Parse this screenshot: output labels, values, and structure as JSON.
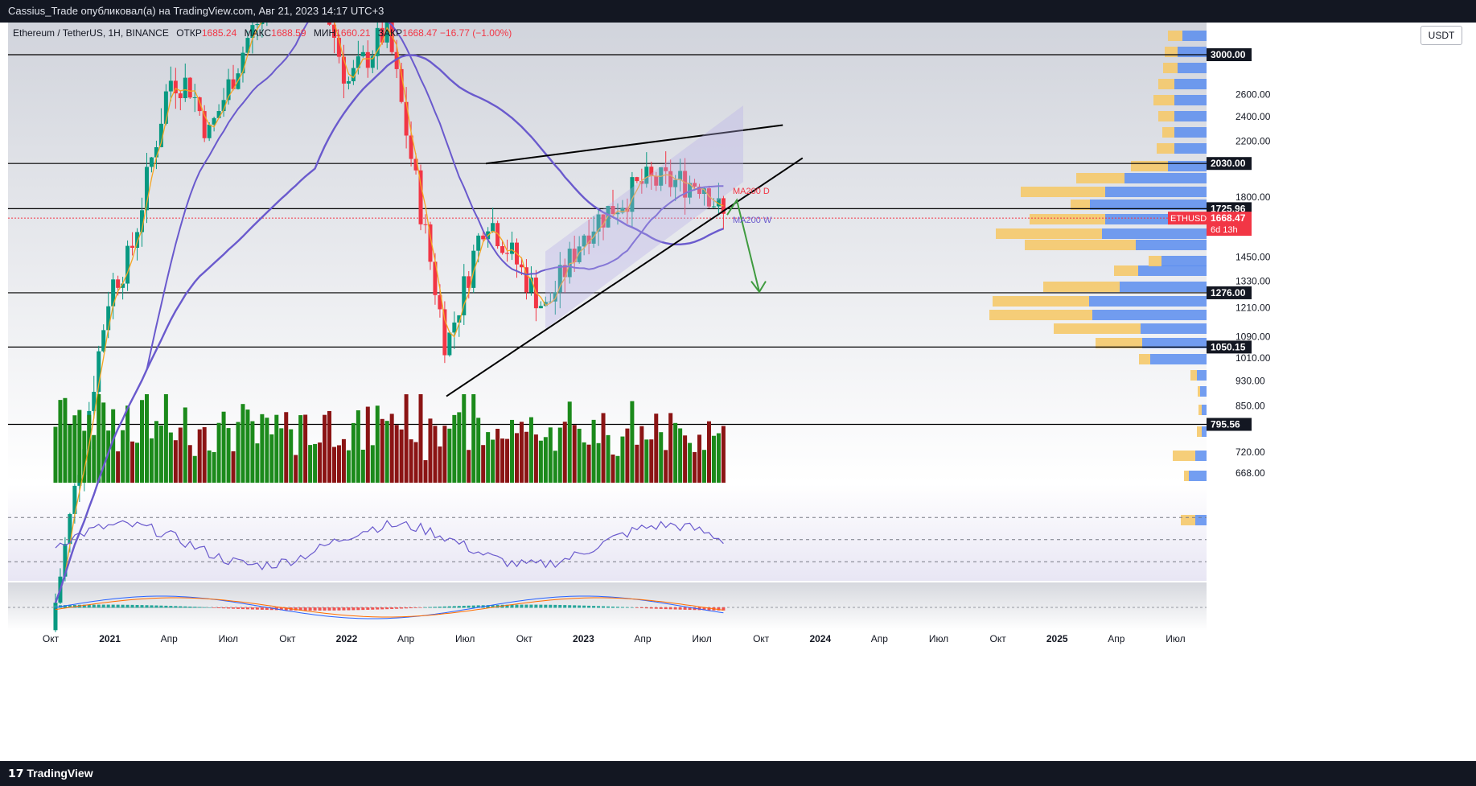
{
  "header": {
    "publish_line": "Cassius_Trade опубликовал(а) на TradingView.com, Авг 21, 2023 14:17 UTC+3"
  },
  "legend": {
    "symbol": "Ethereum / TetherUS, 1H, BINANCE",
    "open_label": "ОТКР",
    "open_value": "1685.24",
    "high_label": "МАКС",
    "high_value": "1688.59",
    "low_label": "МИН",
    "low_value": "1660.21",
    "close_label": "ЗАКР",
    "close_value": "1668.47",
    "change": "−16.77 (−1.00%)"
  },
  "currency_button": "USDT",
  "footer": {
    "brand": "TradingView"
  },
  "colors": {
    "up": "#089981",
    "down": "#f23645",
    "vol_up": "#1b8a1b",
    "vol_down": "#8b1414",
    "ma_purple": "#6a5acd",
    "ma_orange": "#f5a623",
    "vp_yellow": "#f5c96a",
    "vp_blue": "#5b8def",
    "projection": "#3f9b3f"
  },
  "chart_data": [
    {
      "type": "candlestick",
      "symbol": "ETHUSDT",
      "y_axis": {
        "ticks": [
          668,
          720,
          850,
          930,
          1010,
          1090,
          1210,
          1330,
          1450,
          1800,
          2200,
          2400,
          2600
        ],
        "highlighted_levels": [
          "3000.00",
          "2030.00",
          "1725.96",
          "1276.00",
          "1050.15",
          "795.56"
        ]
      },
      "x_axis": {
        "ticks": [
          "Окт",
          "2021",
          "Апр",
          "Июл",
          "Окт",
          "2022",
          "Апр",
          "Июл",
          "Окт",
          "2023",
          "Апр",
          "Июл",
          "Окт",
          "2024",
          "Апр",
          "Июл",
          "Окт",
          "2025",
          "Апр",
          "Июл"
        ]
      },
      "horizontal_levels": [
        3000,
        2030,
        1725.96,
        1276,
        1050.15,
        795.56
      ],
      "price_label": {
        "symbol": "ETHUSDT",
        "value": "1668.47",
        "countdown": "6d 13h"
      },
      "annotations": [
        "MA200 D",
        "MA200 W"
      ],
      "close_series_approx": [
        {
          "date": "2020-10",
          "close": 380
        },
        {
          "date": "2021-01",
          "close": 1300
        },
        {
          "date": "2021-02",
          "close": 1450
        },
        {
          "date": "2021-04",
          "close": 2750
        },
        {
          "date": "2021-05",
          "close": 2700
        },
        {
          "date": "2021-06",
          "close": 2250
        },
        {
          "date": "2021-08",
          "close": 3200
        },
        {
          "date": "2021-11",
          "close": 4500
        },
        {
          "date": "2022-01",
          "close": 2700
        },
        {
          "date": "2022-03",
          "close": 3300
        },
        {
          "date": "2022-06",
          "close": 1050
        },
        {
          "date": "2022-08",
          "close": 1700
        },
        {
          "date": "2022-11",
          "close": 1200
        },
        {
          "date": "2023-01",
          "close": 1600
        },
        {
          "date": "2023-04",
          "close": 1900
        },
        {
          "date": "2023-07",
          "close": 1900
        },
        {
          "date": "2023-08",
          "close": 1668
        }
      ]
    },
    {
      "type": "line",
      "name": "RSI",
      "y_ticks": [
        20,
        40,
        60,
        80,
        100
      ]
    },
    {
      "type": "bar",
      "name": "MACD",
      "y_ticks": [
        "0.00"
      ]
    }
  ]
}
